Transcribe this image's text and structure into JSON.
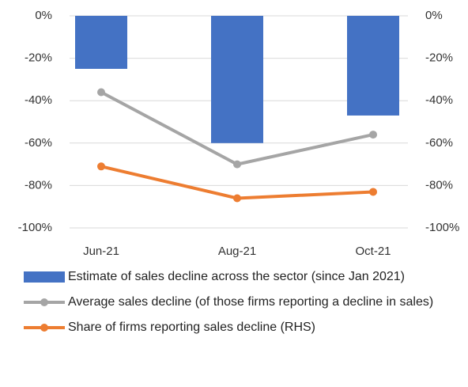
{
  "chart_data": {
    "type": "bar-line",
    "categories": [
      "Jun-21",
      "Aug-21",
      "Oct-21"
    ],
    "series": [
      {
        "name": "Estimate of sales decline across the sector (since Jan 2021)",
        "type": "bar",
        "color": "#4472c4",
        "values": [
          -25,
          -60,
          -47
        ]
      },
      {
        "name": "Average sales decline (of those firms reporting a decline in sales)",
        "type": "line",
        "color": "#a5a5a5",
        "values": [
          -36,
          -70,
          -56
        ]
      },
      {
        "name": "Share of firms reporting sales decline (RHS)",
        "type": "line",
        "color": "#ed7d31",
        "axis": "y2",
        "values": [
          -71,
          -86,
          -83
        ]
      }
    ],
    "ylim": [
      -100,
      0
    ],
    "yticks": [
      {
        "value": 0,
        "label": "0%"
      },
      {
        "value": -20,
        "label": "-20%"
      },
      {
        "value": -40,
        "label": "-40%"
      },
      {
        "value": -60,
        "label": "-60%"
      },
      {
        "value": -80,
        "label": "-80%"
      },
      {
        "value": -100,
        "label": "-100%"
      }
    ],
    "y2lim": [
      -100,
      0
    ],
    "y2ticks": [
      {
        "value": 0,
        "label": "0%"
      },
      {
        "value": -20,
        "label": "-20%"
      },
      {
        "value": -40,
        "label": "-40%"
      },
      {
        "value": -60,
        "label": "-60%"
      },
      {
        "value": -80,
        "label": "-80%"
      },
      {
        "value": -100,
        "label": "-100%"
      }
    ],
    "grid": true,
    "legend": "bottom"
  }
}
